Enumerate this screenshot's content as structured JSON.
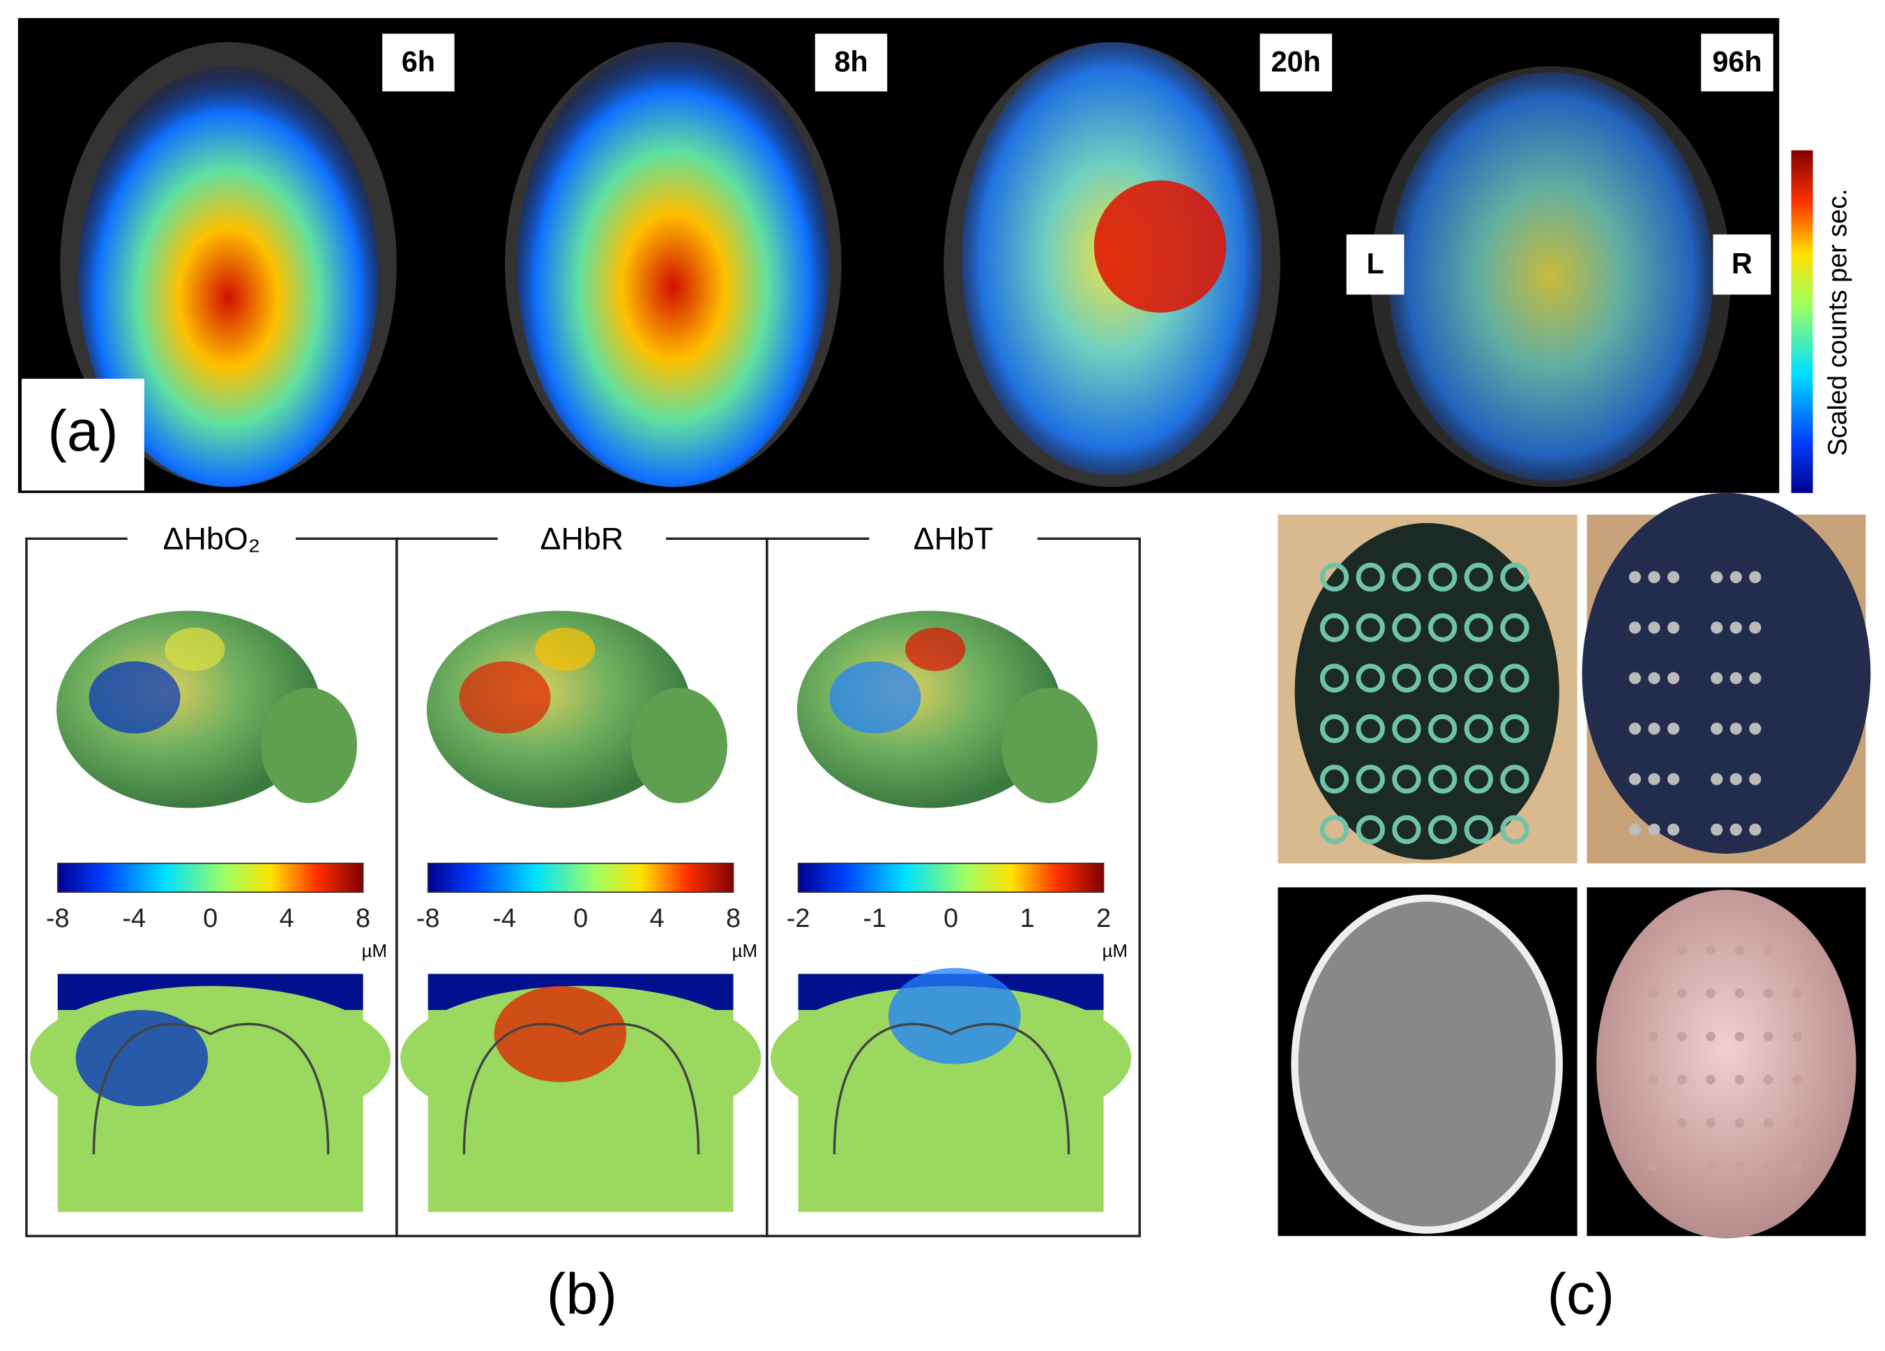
{
  "panel_a": {
    "label": "(a)",
    "time_labels": [
      "6h",
      "8h",
      "20h",
      "96h"
    ],
    "side_labels": [
      "L",
      "R"
    ],
    "colorbar_label": "Scaled counts per sec."
  },
  "panel_b": {
    "label": "(b)",
    "columns": [
      {
        "title": "ΔHbO₂",
        "colorbar_ticks": [
          -8,
          -4,
          0,
          4,
          8
        ],
        "unit": "µM"
      },
      {
        "title": "ΔHbR",
        "colorbar_ticks": [
          -8,
          -4,
          0,
          4,
          8
        ],
        "unit": "µM"
      },
      {
        "title": "ΔHbT",
        "colorbar_ticks": [
          -2,
          -1,
          0,
          1,
          2
        ],
        "unit": "µM"
      }
    ]
  },
  "panel_c": {
    "label": "(c)"
  }
}
